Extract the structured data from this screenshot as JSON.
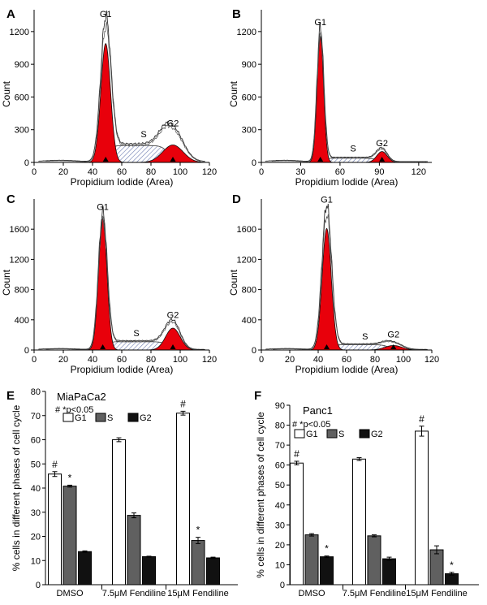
{
  "chart_data": [
    {
      "panel": "A",
      "type": "histogram",
      "xlabel": "Propidium Iodide (Area)",
      "ylabel": "Count",
      "xlim": [
        0,
        120
      ],
      "ylim": [
        0,
        1400
      ],
      "xticks": [
        0,
        20,
        40,
        60,
        80,
        100,
        120
      ],
      "yticks": [
        0,
        300,
        600,
        900,
        1200
      ],
      "peaks": {
        "g1": {
          "center": 49,
          "height": 1300,
          "width": 3.5
        },
        "g2": {
          "center": 95,
          "height": 300,
          "width": 7
        }
      },
      "fit": {
        "g1": {
          "height": 1090
        },
        "s": {
          "height": 155,
          "start": 49,
          "end": 95
        },
        "g2": {
          "height": 160
        }
      },
      "annotations": [
        {
          "text": "G1",
          "x": 49,
          "y": 1310
        },
        {
          "text": "S",
          "x": 75,
          "y": 210
        },
        {
          "text": "G2",
          "x": 95,
          "y": 310
        }
      ]
    },
    {
      "panel": "B",
      "type": "histogram",
      "xlabel": "Propidium Iodide (Area)",
      "ylabel": "Count",
      "xlim": [
        0,
        130
      ],
      "ylim": [
        0,
        1400
      ],
      "xticks": [
        0,
        30,
        60,
        90,
        120
      ],
      "yticks": [
        0,
        300,
        600,
        900,
        1200
      ],
      "peaks": {
        "g1": {
          "center": 45,
          "height": 1230,
          "width": 2.6
        },
        "g2": {
          "center": 92,
          "height": 120,
          "width": 4
        }
      },
      "fit": {
        "g1": {
          "height": 1160
        },
        "s": {
          "height": 38,
          "start": 45,
          "end": 92
        },
        "g2": {
          "height": 100
        }
      },
      "annotations": [
        {
          "text": "G1",
          "x": 45,
          "y": 1235
        },
        {
          "text": "S",
          "x": 70,
          "y": 80
        },
        {
          "text": "G2",
          "x": 92,
          "y": 125
        }
      ]
    },
    {
      "panel": "C",
      "type": "histogram",
      "xlabel": "Propidium Iodide (Area)",
      "ylabel": "Count",
      "xlim": [
        0,
        120
      ],
      "ylim": [
        0,
        2000
      ],
      "xticks": [
        0,
        20,
        40,
        60,
        80,
        100,
        120
      ],
      "yticks": [
        0,
        400,
        800,
        1200,
        1600
      ],
      "peaks": {
        "g1": {
          "center": 47,
          "height": 1800,
          "width": 3
        },
        "g2": {
          "center": 95,
          "height": 370,
          "width": 5
        }
      },
      "fit": {
        "g1": {
          "height": 1740
        },
        "s": {
          "height": 110,
          "start": 47,
          "end": 95
        },
        "g2": {
          "height": 290
        }
      },
      "annotations": [
        {
          "text": "G1",
          "x": 47,
          "y": 1820
        },
        {
          "text": "S",
          "x": 70,
          "y": 150
        },
        {
          "text": "G2",
          "x": 95,
          "y": 395
        }
      ]
    },
    {
      "panel": "D",
      "type": "histogram",
      "xlabel": "Propidium Iodide (Area)",
      "ylabel": "Count",
      "xlim": [
        0,
        120
      ],
      "ylim": [
        0,
        2000
      ],
      "xticks": [
        0,
        20,
        40,
        60,
        80,
        100,
        120
      ],
      "yticks": [
        0,
        400,
        800,
        1200,
        1600
      ],
      "peaks": {
        "g1": {
          "center": 46,
          "height": 1900,
          "width": 3.4
        },
        "g2": {
          "center": 93,
          "height": 90,
          "width": 6
        }
      },
      "fit": {
        "g1": {
          "height": 1610
        },
        "s": {
          "height": 70,
          "start": 46,
          "end": 93
        },
        "g2": {
          "height": 60
        }
      },
      "annotations": [
        {
          "text": "G1",
          "x": 46,
          "y": 1920
        },
        {
          "text": "S",
          "x": 73,
          "y": 110
        },
        {
          "text": "G2",
          "x": 93,
          "y": 135
        }
      ]
    },
    {
      "panel": "E",
      "type": "bar",
      "title": "MiaPaCa2",
      "note": "# *p<0.05",
      "ylabel": "% cells in different phases of cell cycle",
      "ylim": [
        0,
        80
      ],
      "yticks": [
        0,
        10,
        20,
        30,
        40,
        50,
        60,
        70,
        80
      ],
      "categories": [
        "DMSO",
        "7.5μM Fendiline",
        "15μM Fendiline"
      ],
      "series": [
        {
          "name": "G1",
          "values": [
            45.8,
            60.0,
            71.0
          ],
          "errors": [
            1.0,
            0.8,
            0.8
          ],
          "marks": [
            "#",
            "",
            "#"
          ]
        },
        {
          "name": "S",
          "values": [
            40.8,
            28.7,
            18.3
          ],
          "errors": [
            0.4,
            1.0,
            1.3
          ],
          "marks": [
            "*",
            "",
            "*"
          ]
        },
        {
          "name": "G2",
          "values": [
            13.7,
            11.6,
            11.1
          ],
          "errors": [
            0.3,
            0.2,
            0.3
          ],
          "marks": [
            "",
            "",
            ""
          ]
        }
      ]
    },
    {
      "panel": "F",
      "type": "bar",
      "title": "Panc1",
      "note": "# *p<0.05",
      "ylabel": "% cells in different phases of cell cycle",
      "ylim": [
        0,
        90
      ],
      "yticks": [
        0,
        10,
        20,
        30,
        40,
        50,
        60,
        70,
        80,
        90
      ],
      "categories": [
        "DMSO",
        "7.5μM Fendiline",
        "15μM Fendiline"
      ],
      "series": [
        {
          "name": "G1",
          "values": [
            61.0,
            63.0,
            77.0
          ],
          "errors": [
            0.9,
            0.7,
            2.5
          ],
          "marks": [
            "#",
            "",
            "#"
          ]
        },
        {
          "name": "S",
          "values": [
            25.0,
            24.5,
            17.5
          ],
          "errors": [
            0.6,
            0.5,
            2.0
          ],
          "marks": [
            "",
            "",
            ""
          ]
        },
        {
          "name": "G2",
          "values": [
            14.0,
            13.0,
            5.5
          ],
          "errors": [
            0.4,
            0.8,
            0.7
          ],
          "marks": [
            "*",
            "",
            "*"
          ]
        }
      ]
    }
  ]
}
